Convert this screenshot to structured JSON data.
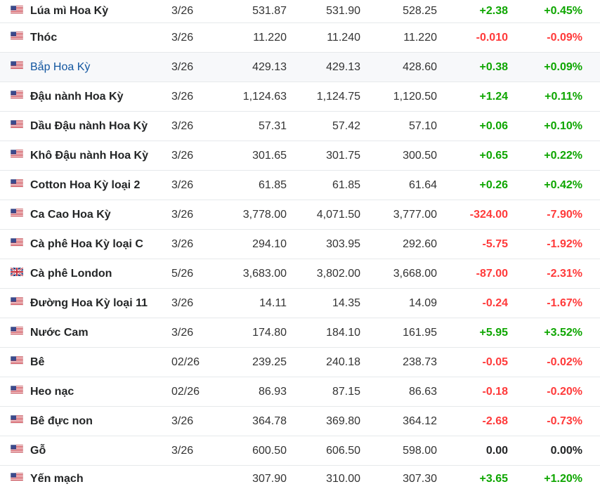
{
  "colors": {
    "positive": "#0ea600",
    "negative": "#ff3a3a",
    "link": "#1256a0"
  },
  "rows": [
    {
      "name": "Lúa mì Hoa Kỳ",
      "flag": "us-flag-icon",
      "month": "3/26",
      "last": "531.87",
      "high": "531.90",
      "low": "528.25",
      "chg": "+2.38",
      "chg_pct": "+0.45%",
      "dir": "pos"
    },
    {
      "name": "Thóc",
      "flag": "us-flag-icon",
      "month": "3/26",
      "last": "11.220",
      "high": "11.240",
      "low": "11.220",
      "chg": "-0.010",
      "chg_pct": "-0.09%",
      "dir": "neg"
    },
    {
      "name": "Bắp Hoa Kỳ",
      "flag": "us-flag-icon",
      "month": "3/26",
      "last": "429.13",
      "high": "429.13",
      "low": "428.60",
      "chg": "+0.38",
      "chg_pct": "+0.09%",
      "dir": "pos",
      "highlight": true
    },
    {
      "name": "Đậu nành Hoa Kỳ",
      "flag": "us-flag-icon",
      "month": "3/26",
      "last": "1,124.63",
      "high": "1,124.75",
      "low": "1,120.50",
      "chg": "+1.24",
      "chg_pct": "+0.11%",
      "dir": "pos"
    },
    {
      "name": "Dầu Đậu nành Hoa Kỳ",
      "flag": "us-flag-icon",
      "month": "3/26",
      "last": "57.31",
      "high": "57.42",
      "low": "57.10",
      "chg": "+0.06",
      "chg_pct": "+0.10%",
      "dir": "pos"
    },
    {
      "name": "Khô Đậu nành Hoa Kỳ",
      "flag": "us-flag-icon",
      "month": "3/26",
      "last": "301.65",
      "high": "301.75",
      "low": "300.50",
      "chg": "+0.65",
      "chg_pct": "+0.22%",
      "dir": "pos"
    },
    {
      "name": "Cotton Hoa Kỳ loại 2",
      "flag": "us-flag-icon",
      "month": "3/26",
      "last": "61.85",
      "high": "61.85",
      "low": "61.64",
      "chg": "+0.26",
      "chg_pct": "+0.42%",
      "dir": "pos"
    },
    {
      "name": "Ca Cao Hoa Kỳ",
      "flag": "us-flag-icon",
      "month": "3/26",
      "last": "3,778.00",
      "high": "4,071.50",
      "low": "3,777.00",
      "chg": "-324.00",
      "chg_pct": "-7.90%",
      "dir": "neg"
    },
    {
      "name": "Cà phê Hoa Kỳ loại C",
      "flag": "us-flag-icon",
      "month": "3/26",
      "last": "294.10",
      "high": "303.95",
      "low": "292.60",
      "chg": "-5.75",
      "chg_pct": "-1.92%",
      "dir": "neg"
    },
    {
      "name": "Cà phê London",
      "flag": "uk-flag-icon",
      "month": "5/26",
      "last": "3,683.00",
      "high": "3,802.00",
      "low": "3,668.00",
      "chg": "-87.00",
      "chg_pct": "-2.31%",
      "dir": "neg"
    },
    {
      "name": "Đường Hoa Kỳ loại 11",
      "flag": "us-flag-icon",
      "month": "3/26",
      "last": "14.11",
      "high": "14.35",
      "low": "14.09",
      "chg": "-0.24",
      "chg_pct": "-1.67%",
      "dir": "neg"
    },
    {
      "name": "Nước Cam",
      "flag": "us-flag-icon",
      "month": "3/26",
      "last": "174.80",
      "high": "184.10",
      "low": "161.95",
      "chg": "+5.95",
      "chg_pct": "+3.52%",
      "dir": "pos"
    },
    {
      "name": "Bê",
      "flag": "us-flag-icon",
      "month": "02/26",
      "last": "239.25",
      "high": "240.18",
      "low": "238.73",
      "chg": "-0.05",
      "chg_pct": "-0.02%",
      "dir": "neg"
    },
    {
      "name": "Heo nạc",
      "flag": "us-flag-icon",
      "month": "02/26",
      "last": "86.93",
      "high": "87.15",
      "low": "86.63",
      "chg": "-0.18",
      "chg_pct": "-0.20%",
      "dir": "neg"
    },
    {
      "name": "Bê đực non",
      "flag": "us-flag-icon",
      "month": "3/26",
      "last": "364.78",
      "high": "369.80",
      "low": "364.12",
      "chg": "-2.68",
      "chg_pct": "-0.73%",
      "dir": "neg"
    },
    {
      "name": "Gỗ",
      "flag": "us-flag-icon",
      "month": "3/26",
      "last": "600.50",
      "high": "606.50",
      "low": "598.00",
      "chg": "0.00",
      "chg_pct": "0.00%",
      "dir": "zero"
    },
    {
      "name": "Yến mạch",
      "flag": "us-flag-icon",
      "month": "",
      "last": "307.90",
      "high": "310.00",
      "low": "307.30",
      "chg": "+3.65",
      "chg_pct": "+1.20%",
      "dir": "pos"
    }
  ]
}
